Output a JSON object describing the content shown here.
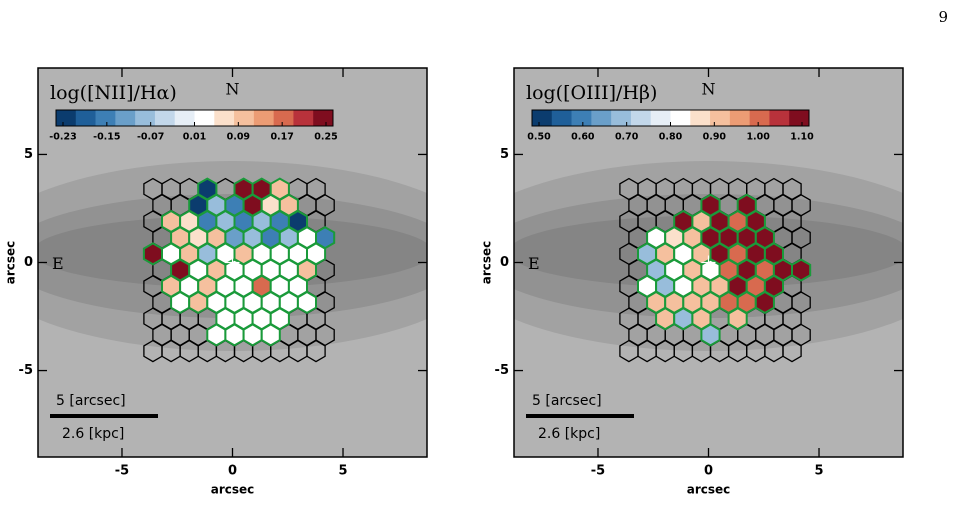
{
  "page_number": "9",
  "chart_data": [
    {
      "type": "hexbin",
      "colorbar_label": "log([NII]/Hα)",
      "colorbar_ticks": [
        -0.23,
        -0.15,
        -0.07,
        0.01,
        0.09,
        0.17,
        0.25
      ],
      "colors": [
        "#0b3c6e",
        "#1f5f99",
        "#3d7fb5",
        "#6a9fc9",
        "#98bddb",
        "#c2d7ea",
        "#e6eef6",
        "#ffffff",
        "#fbe0cb",
        "#f5c09e",
        "#ec9c74",
        "#d86a4f",
        "#b8323b",
        "#7f0d1f"
      ],
      "xlabel": "arcsec",
      "ylabel": "arcsec",
      "xlim": [
        -8.8,
        8.8
      ],
      "ylim": [
        -9,
        9
      ],
      "xticks": [
        -5,
        0,
        5
      ],
      "yticks": [
        -5,
        0,
        5
      ],
      "north_label": "N",
      "east_label": "E",
      "scale_labels": [
        "5 [arcsec]",
        "2.6 [kpc]"
      ],
      "hex_x": [
        -3.6,
        -2.78,
        -1.96,
        -1.14,
        -0.32,
        0.5,
        1.32,
        2.14,
        2.96,
        3.78
      ],
      "hex_y": [
        3.4,
        2.65,
        1.9,
        1.15,
        0.4,
        -0.35,
        -1.1,
        -1.85,
        -2.6,
        -3.35,
        -4.1
      ],
      "values": [
        [
          null,
          null,
          null,
          -0.23,
          null,
          0.23,
          0.25,
          0.09,
          null,
          null
        ],
        [
          null,
          null,
          -0.23,
          -0.07,
          -0.15,
          0.25,
          0.05,
          0.09,
          null,
          null
        ],
        [
          null,
          0.09,
          0.05,
          -0.15,
          -0.07,
          -0.15,
          -0.07,
          -0.15,
          -0.2,
          null
        ],
        [
          null,
          0.09,
          0.05,
          0.09,
          -0.1,
          -0.07,
          -0.15,
          -0.07,
          0.01,
          -0.15
        ],
        [
          0.25,
          0.01,
          0.09,
          -0.07,
          0.01,
          0.09,
          0.01,
          0.01,
          0.01,
          0.01
        ],
        [
          null,
          0.25,
          0.01,
          0.09,
          0.01,
          0.01,
          0.01,
          0.01,
          0.09,
          null
        ],
        [
          null,
          0.09,
          0.01,
          0.09,
          0.01,
          0.01,
          0.15,
          0.01,
          0.01,
          null
        ],
        [
          null,
          0.01,
          0.09,
          0.01,
          0.01,
          0.01,
          0.01,
          0.01,
          0.01,
          null
        ],
        [
          null,
          null,
          null,
          null,
          0.01,
          0.01,
          0.01,
          0.01,
          null,
          null
        ],
        [
          null,
          null,
          null,
          0.01,
          0.01,
          0.01,
          0.01,
          null,
          null,
          null
        ],
        [
          null,
          null,
          null,
          null,
          null,
          null,
          null,
          null,
          null,
          null
        ]
      ]
    },
    {
      "type": "hexbin",
      "colorbar_label": "log([OIII]/Hβ)",
      "colorbar_ticks": [
        {
          "value": 0.5,
          "label": "0.50"
        },
        {
          "value": 0.6,
          "label": "0.60"
        },
        {
          "value": 0.7,
          "label": "0.70"
        },
        {
          "value": 0.8,
          "label": "0.80"
        },
        {
          "value": 0.9,
          "label": "0.90"
        },
        {
          "value": 1.0,
          "label": "1.00"
        },
        {
          "value": 1.1,
          "label": "1.10"
        }
      ],
      "colors": [
        "#0b3c6e",
        "#1f5f99",
        "#3d7fb5",
        "#6a9fc9",
        "#98bddb",
        "#c2d7ea",
        "#e6eef6",
        "#ffffff",
        "#fbe0cb",
        "#f5c09e",
        "#ec9c74",
        "#d86a4f",
        "#b8323b",
        "#7f0d1f"
      ],
      "xlabel": "arcsec",
      "ylabel": "arcsec",
      "xlim": [
        -8.8,
        8.8
      ],
      "ylim": [
        -9,
        9
      ],
      "xticks": [
        -5,
        0,
        5
      ],
      "yticks": [
        -5,
        0,
        5
      ],
      "north_label": "N",
      "east_label": "E",
      "scale_labels": [
        "5 [arcsec]",
        "2.6 [kpc]"
      ],
      "hex_x": [
        -3.6,
        -2.78,
        -1.96,
        -1.14,
        -0.32,
        0.5,
        1.32,
        2.14,
        2.96,
        3.78
      ],
      "hex_y": [
        3.4,
        2.65,
        1.9,
        1.15,
        0.4,
        -0.35,
        -1.1,
        -1.85,
        -2.6,
        -3.35,
        -4.1
      ],
      "values": [
        [
          null,
          null,
          null,
          null,
          null,
          null,
          null,
          null,
          null,
          null
        ],
        [
          null,
          null,
          null,
          null,
          1.1,
          null,
          1.1,
          null,
          null,
          null
        ],
        [
          null,
          null,
          null,
          1.1,
          0.9,
          1.1,
          1.0,
          1.1,
          null,
          null
        ],
        [
          null,
          0.8,
          0.85,
          0.9,
          1.1,
          1.1,
          1.1,
          1.1,
          null,
          null
        ],
        [
          null,
          0.7,
          0.9,
          0.8,
          0.9,
          1.1,
          1.0,
          1.1,
          1.1,
          null
        ],
        [
          null,
          0.7,
          0.8,
          0.9,
          0.8,
          1.0,
          1.1,
          1.0,
          1.1,
          1.1
        ],
        [
          null,
          0.8,
          0.7,
          0.8,
          0.9,
          0.9,
          1.1,
          1.0,
          1.1,
          null
        ],
        [
          null,
          0.9,
          0.9,
          0.9,
          0.9,
          1.0,
          1.0,
          1.1,
          null,
          null
        ],
        [
          null,
          null,
          0.9,
          0.7,
          0.9,
          null,
          0.9,
          null,
          null,
          null
        ],
        [
          null,
          null,
          null,
          null,
          0.7,
          null,
          null,
          null,
          null,
          null
        ],
        [
          null,
          null,
          null,
          null,
          null,
          null,
          null,
          null,
          null,
          null
        ]
      ]
    }
  ]
}
